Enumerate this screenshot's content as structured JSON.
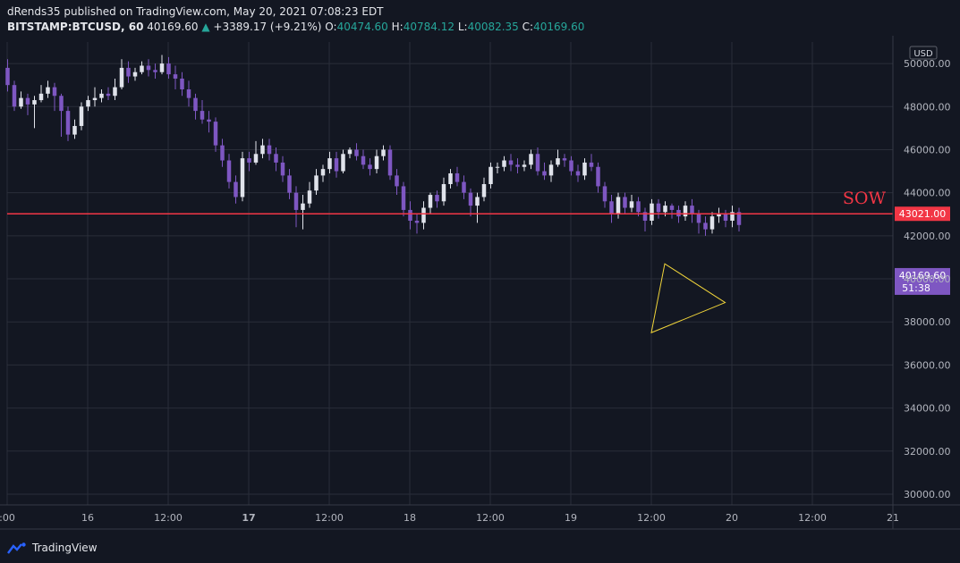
{
  "header": {
    "published_line": "dRends35 published on TradingView.com, May 20, 2021 07:08:23 EDT",
    "symbol": "BITSTAMP:BTCUSD, 60",
    "last": "40169.60",
    "arrow": "▲",
    "change": "+3389.17 (+9.21%)",
    "o_label": "O:",
    "o_value": "40474.60",
    "h_label": "H:",
    "h_value": "40784.12",
    "l_label": "L:",
    "l_value": "40082.35",
    "c_label": "C:",
    "c_value": "40169.60"
  },
  "footer": {
    "brand": "TradingView",
    "logo_icon": "tradingview-logo-icon"
  },
  "colors": {
    "background": "#131722",
    "grid": "#2a2e39",
    "bull": "#e0e3eb",
    "bear": "#7e57c2",
    "level_line": "#f23645",
    "triangle": "#f0d43a",
    "last_price_bg": "#7e57c2",
    "level_label_bg": "#f23645"
  },
  "chart_data": {
    "type": "candlestick",
    "currency": "USD",
    "ylim": [
      29500,
      51000
    ],
    "yticks": [
      30000,
      32000,
      34000,
      36000,
      38000,
      40000,
      42000,
      44000,
      46000,
      48000,
      50000
    ],
    "ytick_labels": [
      "30000.00",
      "32000.00",
      "34000.00",
      "36000.00",
      "38000.00",
      "40000.00",
      "42000.00",
      "44000.00",
      "46000.00",
      "48000.00",
      "50000.00"
    ],
    "xlim_hours": [
      0,
      111
    ],
    "xticks": [
      {
        "t": 0,
        "label": ":00",
        "bold": false
      },
      {
        "t": 12,
        "label": "16",
        "bold": false
      },
      {
        "t": 24,
        "label": "12:00",
        "bold": false
      },
      {
        "t": 36,
        "label": "17",
        "bold": true
      },
      {
        "t": 48,
        "label": "12:00",
        "bold": false
      },
      {
        "t": 60,
        "label": "18",
        "bold": false
      },
      {
        "t": 72,
        "label": "12:00",
        "bold": false
      },
      {
        "t": 84,
        "label": "19",
        "bold": false
      },
      {
        "t": 96,
        "label": "12:00",
        "bold": false
      },
      {
        "t": 108,
        "label": "20",
        "bold": false
      },
      {
        "t": 120,
        "label": "12:00",
        "bold": false
      },
      {
        "t": 132,
        "label": "21",
        "bold": false
      }
    ],
    "candles": [
      [
        49800,
        49000,
        50200,
        48700
      ],
      [
        49000,
        48000,
        49200,
        47800
      ],
      [
        48000,
        48400,
        48700,
        47900
      ],
      [
        48400,
        48100,
        48600,
        47600
      ],
      [
        48100,
        48300,
        48500,
        47000
      ],
      [
        48300,
        48600,
        49000,
        48200
      ],
      [
        48600,
        48900,
        49200,
        48400
      ],
      [
        48900,
        48500,
        49100,
        47800
      ],
      [
        48500,
        47800,
        48600,
        46600
      ],
      [
        47800,
        46700,
        48000,
        46400
      ],
      [
        46700,
        47100,
        47400,
        46500
      ],
      [
        47100,
        48000,
        48200,
        46900
      ],
      [
        48000,
        48300,
        48500,
        47800
      ],
      [
        48300,
        48400,
        48900,
        48000
      ],
      [
        48400,
        48600,
        48800,
        48200
      ],
      [
        48600,
        48500,
        48900,
        48300
      ],
      [
        48500,
        48900,
        49300,
        48300
      ],
      [
        48900,
        49800,
        50200,
        48800
      ],
      [
        49800,
        49400,
        50100,
        49100
      ],
      [
        49400,
        49600,
        49800,
        49200
      ],
      [
        49600,
        49900,
        50100,
        49500
      ],
      [
        49900,
        49700,
        50200,
        49400
      ],
      [
        49700,
        49600,
        50000,
        49300
      ],
      [
        49600,
        50000,
        50400,
        49500
      ],
      [
        50000,
        49500,
        50300,
        49300
      ],
      [
        49500,
        49300,
        49900,
        48800
      ],
      [
        49300,
        48800,
        49600,
        48500
      ],
      [
        48800,
        48400,
        49200,
        48000
      ],
      [
        48400,
        47800,
        48600,
        47400
      ],
      [
        47800,
        47400,
        48300,
        47200
      ],
      [
        47400,
        47300,
        47800,
        46800
      ],
      [
        47300,
        46200,
        47500,
        45900
      ],
      [
        46200,
        45500,
        46500,
        45200
      ],
      [
        45500,
        44500,
        45800,
        44200
      ],
      [
        44500,
        43800,
        44800,
        43500
      ],
      [
        43800,
        45600,
        45900,
        43600
      ],
      [
        45600,
        45400,
        45900,
        45000
      ],
      [
        45400,
        45800,
        46400,
        45300
      ],
      [
        45800,
        46200,
        46500,
        45600
      ],
      [
        46200,
        45800,
        46500,
        45500
      ],
      [
        45800,
        45400,
        46100,
        45000
      ],
      [
        45400,
        44800,
        45700,
        44500
      ],
      [
        44800,
        44000,
        45100,
        43700
      ],
      [
        44000,
        43200,
        44300,
        42400
      ],
      [
        43200,
        43500,
        43900,
        42300
      ],
      [
        43500,
        44100,
        44500,
        43300
      ],
      [
        44100,
        44800,
        45100,
        43900
      ],
      [
        44800,
        45100,
        45300,
        44500
      ],
      [
        45100,
        45600,
        45900,
        44900
      ],
      [
        45600,
        45000,
        45900,
        44700
      ],
      [
        45000,
        45800,
        46000,
        44900
      ],
      [
        45800,
        46000,
        46100,
        45600
      ],
      [
        46000,
        45700,
        46300,
        45500
      ],
      [
        45700,
        45300,
        46000,
        45100
      ],
      [
        45300,
        45100,
        45600,
        44800
      ],
      [
        45100,
        45700,
        46000,
        44900
      ],
      [
        45700,
        46000,
        46200,
        45500
      ],
      [
        46000,
        44800,
        46200,
        44600
      ],
      [
        44800,
        44300,
        45100,
        43900
      ],
      [
        44300,
        43200,
        44500,
        42900
      ],
      [
        43200,
        42700,
        43600,
        42300
      ],
      [
        42700,
        42600,
        43000,
        42100
      ],
      [
        42600,
        43300,
        43600,
        42300
      ],
      [
        43300,
        43900,
        44000,
        43000
      ],
      [
        43900,
        43600,
        44100,
        43300
      ],
      [
        43600,
        44400,
        44700,
        43400
      ],
      [
        44400,
        44900,
        45100,
        44200
      ],
      [
        44900,
        44500,
        45200,
        44300
      ],
      [
        44500,
        44000,
        44800,
        43700
      ],
      [
        44000,
        43400,
        44200,
        42900
      ],
      [
        43400,
        43800,
        44000,
        42600
      ],
      [
        43800,
        44400,
        44700,
        43600
      ],
      [
        44400,
        45200,
        45400,
        44200
      ],
      [
        45200,
        45200,
        45400,
        44900
      ],
      [
        45200,
        45500,
        45700,
        45000
      ],
      [
        45500,
        45300,
        45800,
        45000
      ],
      [
        45300,
        45200,
        45600,
        44900
      ],
      [
        45200,
        45300,
        45500,
        45000
      ],
      [
        45300,
        45800,
        46000,
        45100
      ],
      [
        45800,
        45000,
        46100,
        44800
      ],
      [
        45000,
        44800,
        45400,
        44600
      ],
      [
        44800,
        45300,
        45500,
        44500
      ],
      [
        45300,
        45600,
        46000,
        45200
      ],
      [
        45600,
        45500,
        45800,
        45200
      ],
      [
        45500,
        45000,
        45700,
        44800
      ],
      [
        45000,
        44800,
        45300,
        44500
      ],
      [
        44800,
        45400,
        45600,
        44600
      ],
      [
        45400,
        45200,
        45800,
        45000
      ],
      [
        45200,
        44300,
        45400,
        44000
      ],
      [
        44300,
        43600,
        44500,
        43300
      ],
      [
        43600,
        43000,
        43900,
        42600
      ],
      [
        43000,
        43800,
        44000,
        42800
      ],
      [
        43800,
        43300,
        44000,
        43000
      ],
      [
        43300,
        43600,
        43900,
        43100
      ],
      [
        43600,
        43100,
        43800,
        42900
      ],
      [
        43100,
        42700,
        43300,
        42200
      ],
      [
        42700,
        43500,
        43700,
        42500
      ],
      [
        43500,
        43100,
        43700,
        42800
      ],
      [
        43100,
        43400,
        43600,
        42900
      ],
      [
        43400,
        43200,
        43500,
        42800
      ],
      [
        43200,
        42900,
        43400,
        42600
      ],
      [
        42900,
        43400,
        43600,
        42700
      ],
      [
        43400,
        43000,
        43700,
        42600
      ],
      [
        43000,
        42600,
        43200,
        42100
      ],
      [
        42600,
        42300,
        42900,
        42000
      ],
      [
        42300,
        42900,
        43100,
        42100
      ],
      [
        42900,
        43000,
        43300,
        42600
      ],
      [
        43000,
        42700,
        43200,
        42400
      ],
      [
        42700,
        43100,
        43400,
        42400
      ],
      [
        43100,
        42500,
        43300,
        42200
      ]
    ],
    "level_line": {
      "value": 43021,
      "label": "43021.00",
      "annotation": "SOW"
    },
    "last_price": {
      "value": 40169.6,
      "label": "40169.60",
      "countdown": "51:38"
    },
    "pattern": {
      "type": "triangle",
      "points_t": [
        96,
        98,
        107
      ],
      "points_y": [
        37500,
        40700,
        38900
      ]
    }
  }
}
